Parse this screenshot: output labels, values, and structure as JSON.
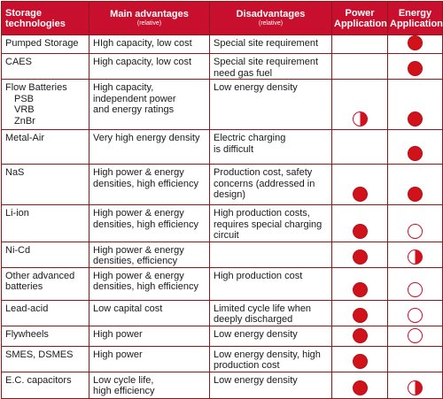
{
  "columns": [
    {
      "title": "Storage technologies",
      "sub": ""
    },
    {
      "title": "Main advantages",
      "sub": "(relative)"
    },
    {
      "title": "Disadvantages",
      "sub": "(relative)"
    },
    {
      "title": "Power Application",
      "sub": ""
    },
    {
      "title": "Energy Application",
      "sub": ""
    }
  ],
  "rows": [
    {
      "tech": "Pumped Storage",
      "subs": [],
      "advantages": [
        "HIgh capacity, low cost"
      ],
      "disadvantages": [
        "Special site requirement"
      ],
      "power": "none",
      "energy": "full"
    },
    {
      "tech": "CAES",
      "subs": [],
      "advantages": [
        "High capacity, low cost"
      ],
      "disadvantages": [
        "Special site requirement",
        "need gas fuel"
      ],
      "power": "none",
      "energy": "full"
    },
    {
      "tech": "Flow Batteries",
      "subs": [
        "PSB",
        "VRB",
        "ZnBr"
      ],
      "advantages": [
        "High capacity,",
        "independent power",
        "and energy ratings"
      ],
      "disadvantages": [
        "Low energy density"
      ],
      "power": "half",
      "energy": "full"
    },
    {
      "tech": "Metal-Air",
      "subs": [],
      "advantages": [
        "Very high energy density"
      ],
      "disadvantages": [
        "Electric charging",
        "is difficult"
      ],
      "power": "none",
      "energy": "full"
    },
    {
      "tech": "NaS",
      "subs": [],
      "advantages": [
        "High power & energy",
        "densities, high efficiency"
      ],
      "disadvantages": [
        "Production cost, safety",
        "concerns (addressed in",
        "design)"
      ],
      "power": "full",
      "energy": "full"
    },
    {
      "tech": "Li-ion",
      "subs": [],
      "advantages": [
        "High power & energy",
        "densities, high efficiency"
      ],
      "disadvantages": [
        "High production costs,",
        "requires special charging",
        "circuit"
      ],
      "power": "full",
      "energy": "empty"
    },
    {
      "tech": "Ni-Cd",
      "subs": [],
      "advantages": [
        "High power & energy",
        "densities, efficiency"
      ],
      "disadvantages": [],
      "power": "full",
      "energy": "half"
    },
    {
      "tech": "Other advanced\nbatteries",
      "subs": [],
      "advantages": [
        "High power & energy",
        "densities, high efficiency"
      ],
      "disadvantages": [
        "High production cost"
      ],
      "power": "full",
      "energy": "empty"
    },
    {
      "tech": "Lead-acid",
      "subs": [],
      "advantages": [
        "Low capital cost"
      ],
      "disadvantages": [
        "Limited cycle life when",
        "deeply discharged"
      ],
      "power": "full",
      "energy": "empty"
    },
    {
      "tech": "Flywheels",
      "subs": [],
      "advantages": [
        "High power"
      ],
      "disadvantages": [
        "Low energy density"
      ],
      "power": "full",
      "energy": "empty"
    },
    {
      "tech": "SMES, DSMES",
      "subs": [],
      "advantages": [
        "High power"
      ],
      "disadvantages": [
        "Low energy density, high",
        "production cost"
      ],
      "power": "full",
      "energy": "none"
    },
    {
      "tech": "E.C. capacitors",
      "subs": [],
      "advantages": [
        "Low cycle life,",
        "high efficiency"
      ],
      "disadvantages": [
        "Low energy density"
      ],
      "power": "full",
      "energy": "half"
    }
  ]
}
